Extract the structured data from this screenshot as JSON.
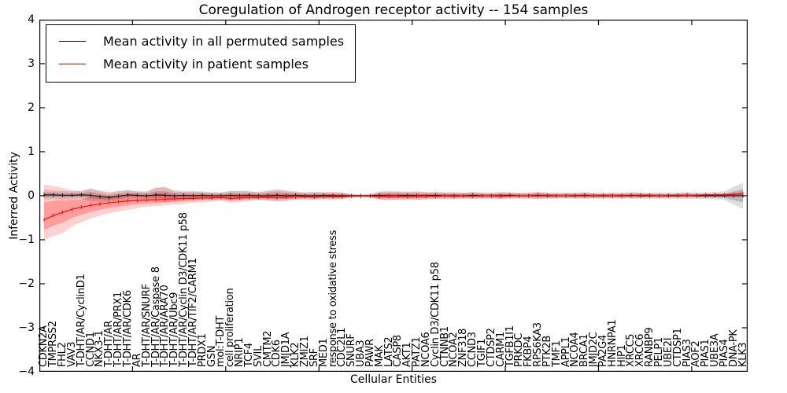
{
  "chart_data": {
    "type": "line",
    "title": "Coregulation of Androgen receptor activity -- 154 samples",
    "xlabel": "Cellular Entities",
    "ylabel": "Inferred Activity",
    "ylim": [
      -4,
      4
    ],
    "grid": false,
    "legend_position": "upper left",
    "ytick_values": [
      4,
      3,
      2,
      1,
      0,
      -1,
      -2,
      -3,
      -4
    ],
    "ytick_labels": [
      "4",
      "3",
      "2",
      "1",
      "0",
      "−1",
      "−2",
      "−3",
      "−4"
    ],
    "xtick_step": 10,
    "categories": [
      "CDKN2A",
      "TMPRSS2",
      "FHL2",
      "VAV3",
      "T-DHT/AR/CyclinD1",
      "CCND1",
      "NKX3-1",
      "T-DHT/AR",
      "T-DHT/AR/PRX1",
      "T-DHT/AR/CDK6",
      "AR",
      "T-DHT/AR/SNURF",
      "T-DHT/AR/Caspase 8",
      "T-DHT/AR/ARA70",
      "T-DHT/AR/Ubc9",
      "T-DHT/AR/Cyclin D3/CDK11 p58",
      "T-DHT/AR/TIF2/CARM1",
      "PRDX1",
      "GSN",
      "mol:T-DHT",
      "cell proliferation",
      "NRIP1",
      "TCF4",
      "SVIL",
      "CMTM2",
      "CDK6",
      "JMJD1A",
      "KLK2",
      "ZMIZ1",
      "SRF",
      "MED1",
      "response to oxidative stress",
      "CDC2L1",
      "SNURF",
      "UBA3",
      "PAWR",
      "MAK",
      "LATS2",
      "CASP8",
      "AKT1",
      "PATZ1",
      "NCOA6",
      "Cyclin D3/CDK11 p58",
      "CTNNB1",
      "NCOA2",
      "ZNF318",
      "CCND3",
      "TGIF1",
      "CTDSP2",
      "CARM1",
      "TGFB1I1",
      "PRKDC",
      "FKBP4",
      "RPS6KA3",
      "PTK2B",
      "TMF1",
      "APPL1",
      "NCOA4",
      "BRCA1",
      "JMJD2C",
      "PA2G4",
      "HNRNPA1",
      "HIP1",
      "XRCC5",
      "XRCC6",
      "RANBP9",
      "PELP1",
      "UBE2I",
      "CTDSP1",
      "PIAS3",
      "AOF2",
      "PIAS1",
      "UBE3A",
      "PIAS4",
      "DNA-PK",
      "KLK3"
    ],
    "series": [
      {
        "name": "Mean activity in all permuted samples",
        "color": "#000000",
        "values": [
          0.02,
          0.02,
          0.01,
          0.01,
          0.02,
          0.01,
          -0.02,
          -0.04,
          -0.01,
          0.02,
          0.01,
          0.0,
          0.02,
          0.01,
          0.0,
          0.01,
          0.0,
          0.01,
          0.0,
          0.0,
          0.01,
          0.0,
          0.01,
          0.0,
          0.0,
          0.01,
          0.0,
          0.01,
          0.0,
          0.0,
          0.01,
          0.0,
          0.0,
          0.0,
          0.0,
          0.0,
          0.01,
          0.0,
          0.0,
          0.01,
          0.0,
          0.0,
          0.01,
          0.0,
          0.0,
          0.0,
          0.01,
          0.0,
          0.0,
          0.0,
          0.01,
          0.0,
          0.0,
          0.01,
          0.0,
          0.0,
          0.0,
          0.0,
          0.01,
          0.0,
          0.0,
          0.0,
          0.0,
          0.01,
          0.0,
          0.0,
          0.0,
          0.0,
          0.0,
          0.01,
          0.0,
          0.0,
          0.0,
          0.0,
          0.0,
          0.0
        ]
      },
      {
        "name": "Mean activity in patient samples",
        "color": "#ff0000",
        "values": [
          -0.55,
          -0.45,
          -0.38,
          -0.31,
          -0.26,
          -0.22,
          -0.19,
          -0.16,
          -0.14,
          -0.12,
          -0.11,
          -0.1,
          -0.09,
          -0.08,
          -0.07,
          -0.06,
          -0.06,
          -0.05,
          -0.05,
          -0.04,
          -0.06,
          -0.05,
          -0.04,
          -0.04,
          -0.03,
          -0.04,
          -0.03,
          -0.03,
          -0.02,
          -0.03,
          -0.02,
          -0.02,
          -0.02,
          -0.01,
          -0.01,
          -0.01,
          -0.02,
          -0.01,
          -0.01,
          -0.02,
          -0.01,
          -0.01,
          -0.01,
          0.0,
          -0.01,
          0.0,
          -0.01,
          0.0,
          0.0,
          -0.01,
          0.0,
          0.0,
          0.0,
          0.0,
          0.01,
          0.0,
          0.0,
          0.01,
          0.0,
          0.0,
          0.01,
          0.0,
          0.01,
          0.0,
          0.01,
          0.01,
          0.0,
          0.01,
          0.01,
          0.01,
          0.01,
          0.02,
          0.02,
          0.02,
          0.03,
          0.04
        ]
      }
    ],
    "bands": [
      {
        "name": "permuted-samples-spread",
        "series_index": 0,
        "color": "#000000",
        "opacity": 0.13,
        "upper": [
          0.14,
          0.12,
          0.11,
          0.1,
          0.11,
          0.16,
          0.1,
          0.06,
          0.11,
          0.12,
          0.1,
          0.1,
          0.18,
          0.19,
          0.12,
          0.11,
          0.1,
          0.1,
          0.08,
          0.08,
          0.11,
          0.1,
          0.1,
          0.08,
          0.12,
          0.15,
          0.12,
          0.1,
          0.08,
          0.09,
          0.09,
          0.08,
          0.08,
          0.04,
          0.03,
          0.04,
          0.1,
          0.1,
          0.09,
          0.09,
          0.09,
          0.08,
          0.09,
          0.08,
          0.08,
          0.07,
          0.09,
          0.07,
          0.07,
          0.08,
          0.08,
          0.07,
          0.07,
          0.09,
          0.07,
          0.07,
          0.07,
          0.07,
          0.09,
          0.07,
          0.07,
          0.07,
          0.07,
          0.09,
          0.07,
          0.07,
          0.07,
          0.07,
          0.07,
          0.09,
          0.07,
          0.08,
          0.08,
          0.1,
          0.2,
          0.3
        ],
        "lower": [
          -0.1,
          -0.08,
          -0.09,
          -0.08,
          -0.07,
          -0.13,
          -0.14,
          -0.14,
          -0.13,
          -0.08,
          -0.08,
          -0.1,
          -0.12,
          -0.16,
          -0.12,
          -0.09,
          -0.1,
          -0.08,
          -0.08,
          -0.08,
          -0.09,
          -0.1,
          -0.08,
          -0.08,
          -0.12,
          -0.13,
          -0.12,
          -0.08,
          -0.08,
          -0.09,
          -0.07,
          -0.08,
          -0.08,
          -0.04,
          -0.03,
          -0.04,
          -0.08,
          -0.1,
          -0.09,
          -0.07,
          -0.09,
          -0.08,
          -0.07,
          -0.08,
          -0.08,
          -0.07,
          -0.07,
          -0.07,
          -0.07,
          -0.08,
          -0.06,
          -0.07,
          -0.07,
          -0.07,
          -0.07,
          -0.07,
          -0.07,
          -0.07,
          -0.07,
          -0.07,
          -0.07,
          -0.07,
          -0.07,
          -0.07,
          -0.07,
          -0.07,
          -0.07,
          -0.07,
          -0.07,
          -0.07,
          -0.07,
          -0.08,
          -0.08,
          -0.1,
          -0.2,
          -0.3
        ]
      },
      {
        "name": "patient-samples-spread",
        "series_index": 1,
        "color": "#ff0000",
        "opacity": 0.18,
        "upper": [
          0.25,
          0.22,
          0.18,
          0.12,
          0.1,
          0.16,
          0.12,
          0.08,
          0.1,
          0.13,
          0.1,
          0.08,
          0.18,
          0.2,
          0.1,
          0.08,
          0.1,
          0.08,
          0.07,
          0.06,
          0.1,
          0.12,
          0.1,
          0.08,
          0.1,
          0.12,
          0.1,
          0.08,
          0.06,
          0.08,
          0.06,
          0.08,
          0.06,
          0.03,
          0.02,
          0.03,
          0.08,
          0.1,
          0.1,
          0.08,
          0.1,
          0.08,
          0.08,
          0.06,
          0.08,
          0.06,
          0.08,
          0.06,
          0.06,
          0.08,
          0.06,
          0.05,
          0.06,
          0.08,
          0.06,
          0.05,
          0.06,
          0.05,
          0.06,
          0.05,
          0.05,
          0.06,
          0.05,
          0.05,
          0.06,
          0.05,
          0.05,
          0.04,
          0.05,
          0.05,
          0.04,
          0.05,
          0.05,
          0.05,
          0.06,
          0.1
        ],
        "lower": [
          -1.0,
          -0.92,
          -0.85,
          -0.7,
          -0.6,
          -0.52,
          -0.45,
          -0.4,
          -0.36,
          -0.32,
          -0.28,
          -0.25,
          -0.24,
          -0.22,
          -0.2,
          -0.18,
          -0.16,
          -0.15,
          -0.14,
          -0.12,
          -0.16,
          -0.14,
          -0.12,
          -0.1,
          -0.1,
          -0.12,
          -0.1,
          -0.09,
          -0.08,
          -0.09,
          -0.08,
          -0.08,
          -0.07,
          -0.04,
          -0.03,
          -0.04,
          -0.09,
          -0.1,
          -0.09,
          -0.1,
          -0.09,
          -0.08,
          -0.08,
          -0.06,
          -0.07,
          -0.06,
          -0.07,
          -0.06,
          -0.06,
          -0.07,
          -0.06,
          -0.05,
          -0.06,
          -0.07,
          -0.06,
          -0.05,
          -0.05,
          -0.05,
          -0.06,
          -0.05,
          -0.05,
          -0.05,
          -0.05,
          -0.05,
          -0.05,
          -0.04,
          -0.05,
          -0.04,
          -0.04,
          -0.05,
          -0.04,
          -0.04,
          -0.04,
          -0.04,
          -0.03,
          -0.02
        ]
      }
    ]
  }
}
